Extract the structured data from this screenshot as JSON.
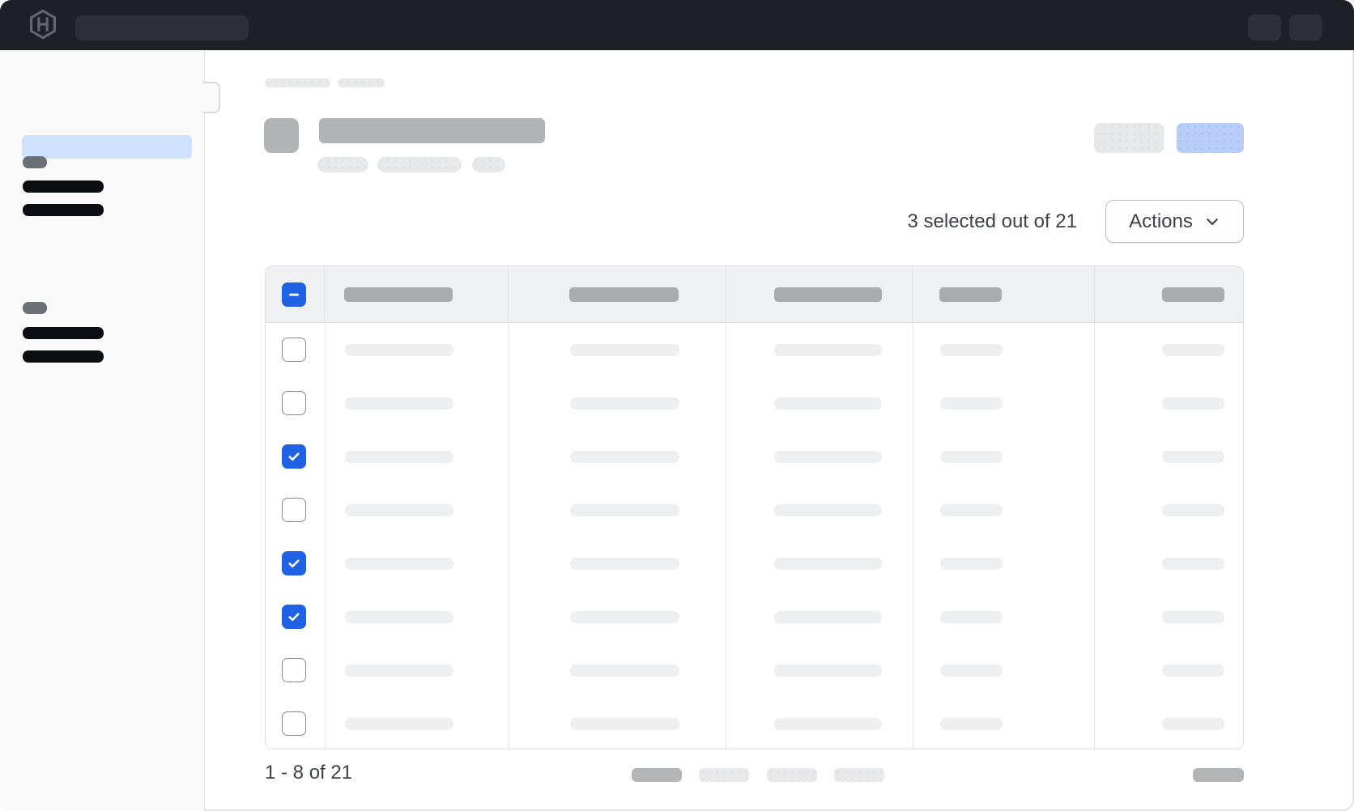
{
  "topnav": {
    "logo_icon": "hashicorp-logo-icon"
  },
  "toolbar": {
    "selection_summary": "3 selected out of 21",
    "actions_button": {
      "label": "Actions",
      "icon": "chevron-down-icon"
    }
  },
  "table": {
    "select_all_state": "indeterminate",
    "data_columns": 5,
    "selected_count": 3,
    "total_count": 21,
    "rows": [
      {
        "selected": false
      },
      {
        "selected": false
      },
      {
        "selected": true
      },
      {
        "selected": false
      },
      {
        "selected": true
      },
      {
        "selected": true
      },
      {
        "selected": false
      },
      {
        "selected": false
      }
    ]
  },
  "pagination": {
    "range_label": "1 - 8 of 21",
    "page_start": 1,
    "page_end": 8,
    "total": 21
  },
  "colors": {
    "checkbox_blue": "#2062e5",
    "primary_button_blue": "#b9cdf9",
    "sidebar_active_blue": "#cfe2fd",
    "navbar_bg": "#1d2026",
    "text": "#3e4149"
  }
}
